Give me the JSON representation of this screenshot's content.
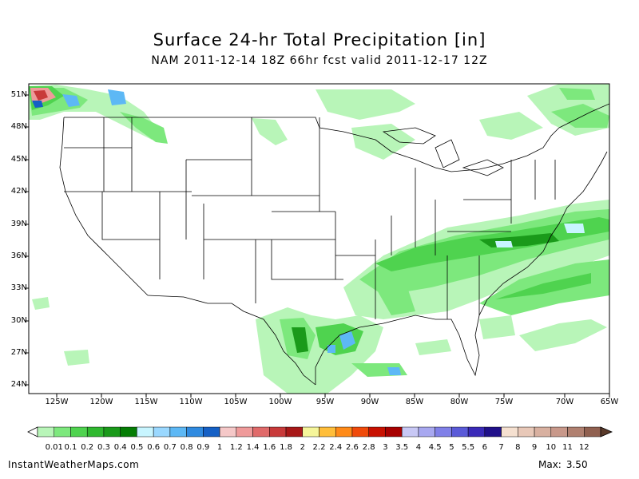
{
  "title": "Surface 24-hr Total Precipitation [in]",
  "subtitle": "NAM 2011-12-14 18Z 66hr fcst valid 2011-12-17 12Z",
  "lat_labels": [
    "51N",
    "48N",
    "45N",
    "42N",
    "39N",
    "36N",
    "33N",
    "30N",
    "27N",
    "24N"
  ],
  "lon_labels": [
    "125W",
    "120W",
    "115W",
    "110W",
    "105W",
    "100W",
    "95W",
    "90W",
    "85W",
    "80W",
    "75W",
    "70W",
    "65W"
  ],
  "legend": {
    "labels": [
      "0.01",
      "0.1",
      "0.2",
      "0.3",
      "0.4",
      "0.5",
      "0.6",
      "0.7",
      "0.8",
      "0.9",
      "1",
      "1.2",
      "1.4",
      "1.6",
      "1.8",
      "2",
      "2.2",
      "2.4",
      "2.6",
      "2.8",
      "3",
      "3.5",
      "4",
      "4.5",
      "5",
      "5.5",
      "6",
      "7",
      "8",
      "9",
      "10",
      "11",
      "12"
    ],
    "colors": [
      "#b8f5b8",
      "#7de87d",
      "#4fd34f",
      "#2fb82f",
      "#1a9a1a",
      "#057d05",
      "#c8f5ff",
      "#9ad8ff",
      "#5db8f5",
      "#2f8ae0",
      "#1560c5",
      "#f5c8c8",
      "#ef9a9a",
      "#e06a6a",
      "#c83a3a",
      "#a81818",
      "#f5f59a",
      "#ffbe3a",
      "#ff8a18",
      "#f04a0a",
      "#c81000",
      "#a80000",
      "#c8c8f5",
      "#a8a8f0",
      "#8080e8",
      "#5a5ad8",
      "#3a2ab8",
      "#20108a",
      "#f5e0d0",
      "#e8c8b8",
      "#d8b0a0",
      "#c8988a",
      "#b08070",
      "#906050"
    ]
  },
  "footer": {
    "site": "InstantWeatherMaps.com",
    "max_label": "Max:",
    "max_value": "3.50"
  },
  "accent_colors": {
    "light_green": "#b8f5b8",
    "green": "#4fd34f",
    "dark_green": "#057d05",
    "light_blue": "#9ad8ff"
  }
}
